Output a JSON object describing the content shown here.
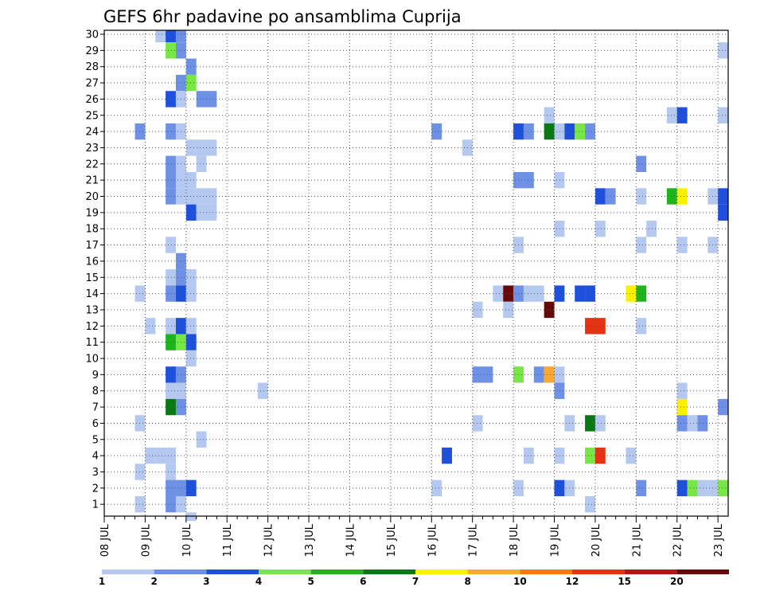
{
  "chart_data": {
    "type": "heatmap",
    "title": "GEFS 6hr padavine po ansamblima Cuprija",
    "x_tick_labels": [
      "08 JUL",
      "09 JUL",
      "10 JUL",
      "11 JUL",
      "12 JUL",
      "13 JUL",
      "14 JUL",
      "15 JUL",
      "16 JUL",
      "17 JUL",
      "18 JUL",
      "19 JUL",
      "20 JUL",
      "21 JUL",
      "22 JUL",
      "23 JUL"
    ],
    "y_tick_labels": [
      "1",
      "2",
      "3",
      "4",
      "5",
      "6",
      "7",
      "8",
      "9",
      "10",
      "11",
      "12",
      "13",
      "14",
      "15",
      "16",
      "17",
      "18",
      "19",
      "20",
      "21",
      "22",
      "23",
      "24",
      "25",
      "26",
      "27",
      "28",
      "29",
      "30"
    ],
    "x_range": [
      0,
      61
    ],
    "y_range": [
      0.5,
      30.5
    ],
    "time_step_hours": 6,
    "members": 30,
    "grid": true,
    "colorbar": {
      "orientation": "horizontal",
      "tick_labels": [
        "1",
        "2",
        "3",
        "4",
        "5",
        "6",
        "7",
        "8",
        "10",
        "12",
        "15",
        "20"
      ],
      "colors": [
        "#b4c8f0",
        "#6e91e6",
        "#1e50dc",
        "#78e646",
        "#1eb41e",
        "#0a7814",
        "#faf000",
        "#faaa32",
        "#fa7814",
        "#e63214",
        "#b41414",
        "#640a0a"
      ]
    },
    "cells": [
      {
        "member": 30,
        "step": 5,
        "level": 1
      },
      {
        "member": 30,
        "step": 6,
        "level": 3
      },
      {
        "member": 30,
        "step": 7,
        "level": 2
      },
      {
        "member": 29,
        "step": 6,
        "level": 4
      },
      {
        "member": 29,
        "step": 7,
        "level": 2
      },
      {
        "member": 29,
        "step": 60,
        "level": 1
      },
      {
        "member": 28,
        "step": 8,
        "level": 2
      },
      {
        "member": 27,
        "step": 7,
        "level": 2
      },
      {
        "member": 27,
        "step": 8,
        "level": 4
      },
      {
        "member": 26,
        "step": 6,
        "level": 3
      },
      {
        "member": 26,
        "step": 7,
        "level": 1
      },
      {
        "member": 26,
        "step": 9,
        "level": 2
      },
      {
        "member": 26,
        "step": 10,
        "level": 2
      },
      {
        "member": 25,
        "step": 43,
        "level": 1
      },
      {
        "member": 25,
        "step": 55,
        "level": 1
      },
      {
        "member": 25,
        "step": 56,
        "level": 3
      },
      {
        "member": 25,
        "step": 60,
        "level": 1
      },
      {
        "member": 24,
        "step": 3,
        "level": 2
      },
      {
        "member": 24,
        "step": 6,
        "level": 2
      },
      {
        "member": 24,
        "step": 7,
        "level": 1
      },
      {
        "member": 24,
        "step": 32,
        "level": 2
      },
      {
        "member": 24,
        "step": 40,
        "level": 3
      },
      {
        "member": 24,
        "step": 41,
        "level": 2
      },
      {
        "member": 24,
        "step": 43,
        "level": 6
      },
      {
        "member": 24,
        "step": 44,
        "level": 1
      },
      {
        "member": 24,
        "step": 45,
        "level": 3
      },
      {
        "member": 24,
        "step": 46,
        "level": 4
      },
      {
        "member": 24,
        "step": 47,
        "level": 2
      },
      {
        "member": 23,
        "step": 8,
        "level": 1
      },
      {
        "member": 23,
        "step": 9,
        "level": 1
      },
      {
        "member": 23,
        "step": 10,
        "level": 1
      },
      {
        "member": 23,
        "step": 35,
        "level": 1
      },
      {
        "member": 22,
        "step": 6,
        "level": 2
      },
      {
        "member": 22,
        "step": 7,
        "level": 1
      },
      {
        "member": 22,
        "step": 9,
        "level": 1
      },
      {
        "member": 22,
        "step": 52,
        "level": 2
      },
      {
        "member": 21,
        "step": 6,
        "level": 2
      },
      {
        "member": 21,
        "step": 7,
        "level": 1
      },
      {
        "member": 21,
        "step": 8,
        "level": 1
      },
      {
        "member": 21,
        "step": 40,
        "level": 2
      },
      {
        "member": 21,
        "step": 41,
        "level": 2
      },
      {
        "member": 21,
        "step": 44,
        "level": 1
      },
      {
        "member": 20,
        "step": 6,
        "level": 2
      },
      {
        "member": 20,
        "step": 7,
        "level": 1
      },
      {
        "member": 20,
        "step": 8,
        "level": 1
      },
      {
        "member": 20,
        "step": 9,
        "level": 1
      },
      {
        "member": 20,
        "step": 10,
        "level": 1
      },
      {
        "member": 20,
        "step": 48,
        "level": 3
      },
      {
        "member": 20,
        "step": 49,
        "level": 2
      },
      {
        "member": 20,
        "step": 52,
        "level": 1
      },
      {
        "member": 20,
        "step": 55,
        "level": 5
      },
      {
        "member": 20,
        "step": 56,
        "level": 7
      },
      {
        "member": 20,
        "step": 59,
        "level": 1
      },
      {
        "member": 20,
        "step": 60,
        "level": 3
      },
      {
        "member": 19,
        "step": 8,
        "level": 3
      },
      {
        "member": 19,
        "step": 9,
        "level": 1
      },
      {
        "member": 19,
        "step": 10,
        "level": 1
      },
      {
        "member": 19,
        "step": 60,
        "level": 3
      },
      {
        "member": 18,
        "step": 44,
        "level": 1
      },
      {
        "member": 18,
        "step": 48,
        "level": 1
      },
      {
        "member": 18,
        "step": 53,
        "level": 1
      },
      {
        "member": 17,
        "step": 6,
        "level": 1
      },
      {
        "member": 17,
        "step": 40,
        "level": 1
      },
      {
        "member": 17,
        "step": 52,
        "level": 1
      },
      {
        "member": 17,
        "step": 56,
        "level": 1
      },
      {
        "member": 17,
        "step": 59,
        "level": 1
      },
      {
        "member": 16,
        "step": 7,
        "level": 2
      },
      {
        "member": 15,
        "step": 6,
        "level": 1
      },
      {
        "member": 15,
        "step": 7,
        "level": 2
      },
      {
        "member": 15,
        "step": 8,
        "level": 1
      },
      {
        "member": 14,
        "step": 7,
        "level": 3
      },
      {
        "member": 14,
        "step": 3,
        "level": 1
      },
      {
        "member": 14,
        "step": 6,
        "level": 2
      },
      {
        "member": 14,
        "step": 8,
        "level": 1
      },
      {
        "member": 14,
        "step": 38,
        "level": 1
      },
      {
        "member": 14,
        "step": 39,
        "level": 12
      },
      {
        "member": 14,
        "step": 40,
        "level": 2
      },
      {
        "member": 14,
        "step": 41,
        "level": 1
      },
      {
        "member": 14,
        "step": 42,
        "level": 1
      },
      {
        "member": 14,
        "step": 44,
        "level": 3
      },
      {
        "member": 14,
        "step": 46,
        "level": 3
      },
      {
        "member": 14,
        "step": 47,
        "level": 3
      },
      {
        "member": 14,
        "step": 51,
        "level": 7
      },
      {
        "member": 14,
        "step": 52,
        "level": 5
      },
      {
        "member": 13,
        "step": 36,
        "level": 1
      },
      {
        "member": 13,
        "step": 39,
        "level": 1
      },
      {
        "member": 13,
        "step": 43,
        "level": 12
      },
      {
        "member": 12,
        "step": 4,
        "level": 1
      },
      {
        "member": 12,
        "step": 6,
        "level": 1
      },
      {
        "member": 12,
        "step": 7,
        "level": 3
      },
      {
        "member": 12,
        "step": 8,
        "level": 1
      },
      {
        "member": 12,
        "step": 47,
        "level": 10
      },
      {
        "member": 12,
        "step": 48,
        "level": 10
      },
      {
        "member": 12,
        "step": 52,
        "level": 1
      },
      {
        "member": 11,
        "step": 6,
        "level": 5
      },
      {
        "member": 11,
        "step": 7,
        "level": 4
      },
      {
        "member": 11,
        "step": 8,
        "level": 3
      },
      {
        "member": 10,
        "step": 8,
        "level": 1
      },
      {
        "member": 9,
        "step": 6,
        "level": 3
      },
      {
        "member": 9,
        "step": 7,
        "level": 2
      },
      {
        "member": 9,
        "step": 36,
        "level": 2
      },
      {
        "member": 9,
        "step": 37,
        "level": 2
      },
      {
        "member": 9,
        "step": 40,
        "level": 4
      },
      {
        "member": 9,
        "step": 42,
        "level": 2
      },
      {
        "member": 9,
        "step": 43,
        "level": 8
      },
      {
        "member": 9,
        "step": 44,
        "level": 1
      },
      {
        "member": 8,
        "step": 6,
        "level": 1
      },
      {
        "member": 8,
        "step": 7,
        "level": 1
      },
      {
        "member": 8,
        "step": 15,
        "level": 1
      },
      {
        "member": 8,
        "step": 44,
        "level": 2
      },
      {
        "member": 8,
        "step": 56,
        "level": 1
      },
      {
        "member": 7,
        "step": 6,
        "level": 6
      },
      {
        "member": 7,
        "step": 7,
        "level": 2
      },
      {
        "member": 7,
        "step": 56,
        "level": 7
      },
      {
        "member": 7,
        "step": 60,
        "level": 2
      },
      {
        "member": 6,
        "step": 3,
        "level": 1
      },
      {
        "member": 6,
        "step": 36,
        "level": 1
      },
      {
        "member": 6,
        "step": 45,
        "level": 1
      },
      {
        "member": 6,
        "step": 47,
        "level": 6
      },
      {
        "member": 6,
        "step": 48,
        "level": 1
      },
      {
        "member": 6,
        "step": 56,
        "level": 2
      },
      {
        "member": 6,
        "step": 57,
        "level": 1
      },
      {
        "member": 6,
        "step": 58,
        "level": 2
      },
      {
        "member": 5,
        "step": 9,
        "level": 1
      },
      {
        "member": 4,
        "step": 4,
        "level": 1
      },
      {
        "member": 4,
        "step": 5,
        "level": 1
      },
      {
        "member": 4,
        "step": 6,
        "level": 1
      },
      {
        "member": 4,
        "step": 33,
        "level": 3
      },
      {
        "member": 4,
        "step": 41,
        "level": 1
      },
      {
        "member": 4,
        "step": 44,
        "level": 1
      },
      {
        "member": 4,
        "step": 47,
        "level": 4
      },
      {
        "member": 4,
        "step": 48,
        "level": 10
      },
      {
        "member": 4,
        "step": 51,
        "level": 1
      },
      {
        "member": 3,
        "step": 3,
        "level": 1
      },
      {
        "member": 3,
        "step": 6,
        "level": 1
      },
      {
        "member": 2,
        "step": 6,
        "level": 2
      },
      {
        "member": 2,
        "step": 7,
        "level": 2
      },
      {
        "member": 2,
        "step": 8,
        "level": 3
      },
      {
        "member": 2,
        "step": 32,
        "level": 1
      },
      {
        "member": 2,
        "step": 40,
        "level": 1
      },
      {
        "member": 2,
        "step": 44,
        "level": 3
      },
      {
        "member": 2,
        "step": 45,
        "level": 1
      },
      {
        "member": 2,
        "step": 52,
        "level": 2
      },
      {
        "member": 2,
        "step": 56,
        "level": 3
      },
      {
        "member": 2,
        "step": 57,
        "level": 4
      },
      {
        "member": 2,
        "step": 58,
        "level": 1
      },
      {
        "member": 2,
        "step": 59,
        "level": 1
      },
      {
        "member": 2,
        "step": 60,
        "level": 4
      },
      {
        "member": 1,
        "step": 3,
        "level": 1
      },
      {
        "member": 1,
        "step": 6,
        "level": 2
      },
      {
        "member": 1,
        "step": 7,
        "level": 1
      },
      {
        "member": 1,
        "step": 47,
        "level": 1
      },
      {
        "member": 0,
        "step": 8,
        "level": 1
      }
    ]
  }
}
